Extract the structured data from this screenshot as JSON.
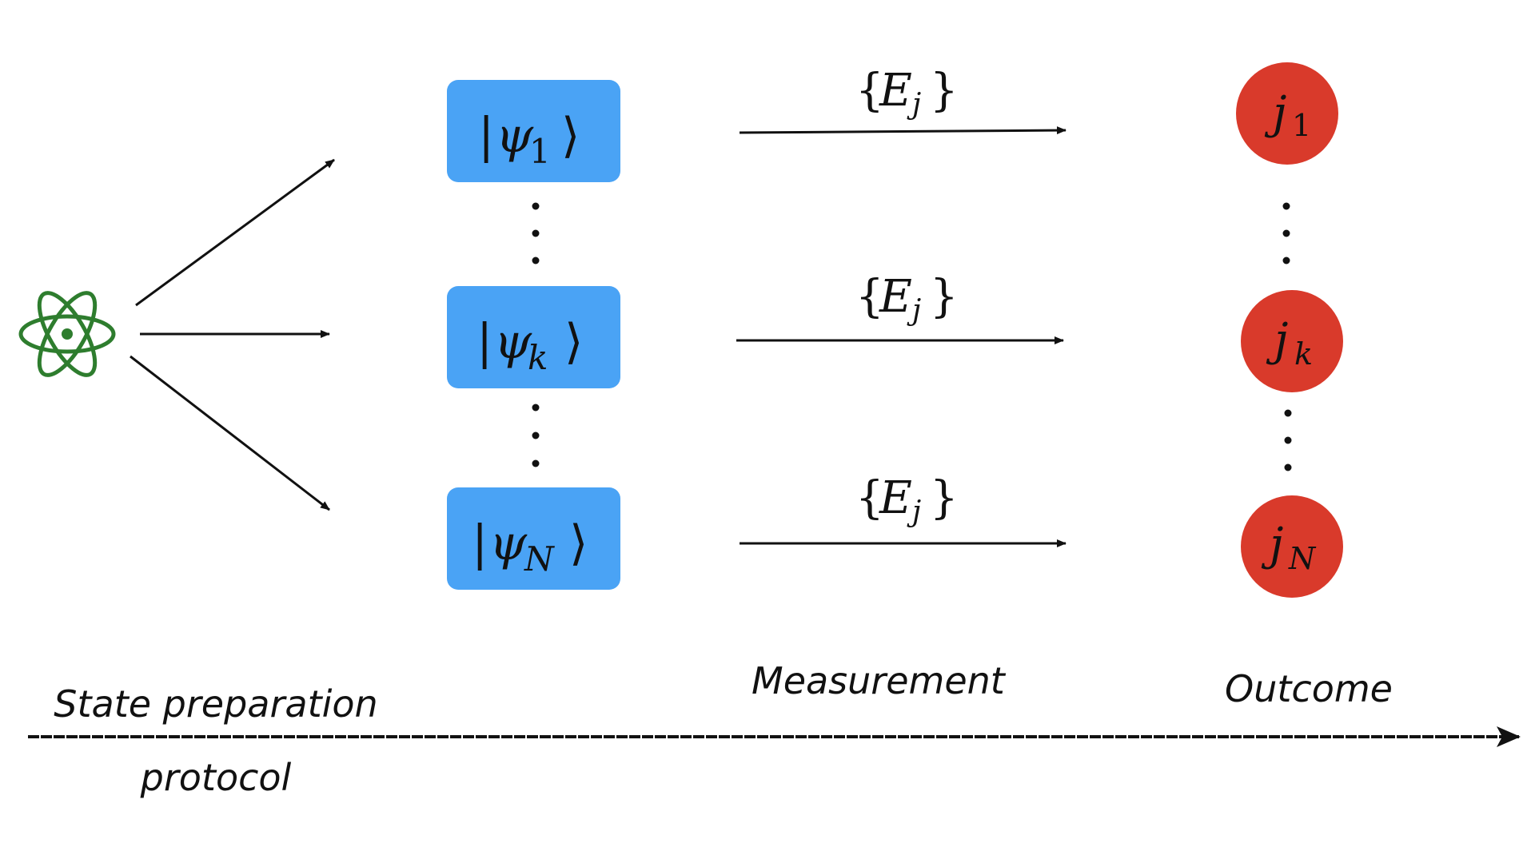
{
  "colors": {
    "state_box": "#4aa3f5",
    "outcome_circle": "#d93a2b",
    "atom_icon": "#2e7d2e",
    "arrow": "#111111"
  },
  "icons": {
    "source": "atom-icon"
  },
  "states": [
    {
      "symbol": "ψ",
      "index": "1"
    },
    {
      "symbol": "ψ",
      "index": "k"
    },
    {
      "symbol": "ψ",
      "index": "N"
    }
  ],
  "measurement": {
    "operator": "E",
    "index": "j"
  },
  "outcomes": [
    {
      "symbol": "j",
      "index": "1"
    },
    {
      "symbol": "j",
      "index": "k"
    },
    {
      "symbol": "j",
      "index": "N"
    }
  ],
  "stages": {
    "state_preparation": "State preparation",
    "protocol": "protocol",
    "measurement": "Measurement",
    "outcome": "Outcome"
  }
}
